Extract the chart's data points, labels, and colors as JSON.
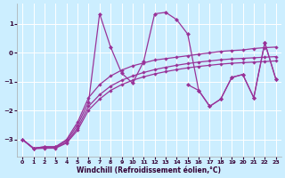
{
  "xlabel": "Windchill (Refroidissement éolien,°C)",
  "background_color": "#cceeff",
  "line_color": "#993399",
  "xlim": [
    -0.5,
    23.5
  ],
  "ylim": [
    -3.6,
    1.7
  ],
  "yticks": [
    -3,
    -2,
    -1,
    0,
    1
  ],
  "xticks": [
    0,
    1,
    2,
    3,
    4,
    5,
    6,
    7,
    8,
    9,
    10,
    11,
    12,
    13,
    14,
    15,
    16,
    17,
    18,
    19,
    20,
    21,
    22,
    23
  ],
  "series": [
    {
      "x": [
        0,
        1,
        2,
        3,
        4,
        5,
        6,
        7,
        8,
        9,
        10,
        11,
        12,
        13,
        14,
        15,
        16,
        17,
        18,
        19,
        20,
        21,
        22,
        23
      ],
      "y": [
        -3.0,
        -3.3,
        -3.25,
        -3.25,
        -3.05,
        -2.5,
        -1.7,
        1.35,
        0.2,
        -0.7,
        -1.05,
        -0.3,
        1.35,
        1.4,
        1.15,
        0.65,
        -1.3,
        -1.85,
        -1.6,
        -0.85,
        -0.75,
        -1.55,
        0.35,
        -0.9
      ]
    },
    {
      "x": [
        0,
        1,
        2,
        3,
        4,
        5,
        6,
        7,
        8,
        9,
        10,
        11,
        12,
        13,
        14,
        15,
        16,
        17,
        18,
        19,
        20,
        21,
        22,
        23
      ],
      "y": [
        -3.0,
        -3.3,
        -3.25,
        -3.25,
        -3.0,
        -2.4,
        -1.55,
        -1.1,
        -0.8,
        -0.6,
        -0.45,
        -0.35,
        -0.25,
        -0.2,
        -0.15,
        -0.1,
        -0.05,
        0.0,
        0.05,
        0.08,
        0.1,
        0.15,
        0.18,
        0.2
      ]
    },
    {
      "x": [
        0,
        1,
        2,
        3,
        4,
        5,
        6,
        7,
        8,
        9,
        10,
        11,
        12,
        13,
        14,
        15,
        16,
        17,
        18,
        19,
        20,
        21,
        22,
        23
      ],
      "y": [
        -3.0,
        -3.3,
        -3.28,
        -3.28,
        -3.1,
        -2.6,
        -1.85,
        -1.45,
        -1.15,
        -0.95,
        -0.8,
        -0.68,
        -0.58,
        -0.5,
        -0.43,
        -0.37,
        -0.32,
        -0.28,
        -0.24,
        -0.21,
        -0.19,
        -0.17,
        -0.15,
        -0.13
      ]
    },
    {
      "x": [
        0,
        1,
        2,
        3,
        4,
        5,
        6,
        7,
        8,
        9,
        10,
        11,
        12,
        13,
        14,
        15,
        16,
        17,
        18,
        19,
        20,
        21,
        22,
        23
      ],
      "y": [
        -3.0,
        -3.32,
        -3.3,
        -3.3,
        -3.12,
        -2.68,
        -1.98,
        -1.6,
        -1.3,
        -1.1,
        -0.95,
        -0.83,
        -0.73,
        -0.65,
        -0.58,
        -0.52,
        -0.47,
        -0.43,
        -0.39,
        -0.36,
        -0.34,
        -0.32,
        -0.3,
        -0.28
      ]
    },
    {
      "x": [
        15,
        16,
        17,
        18,
        19,
        20,
        21,
        22,
        23
      ],
      "y": [
        -1.1,
        -1.3,
        -1.85,
        -1.6,
        -0.85,
        -0.75,
        -1.55,
        0.35,
        -0.9
      ]
    }
  ]
}
